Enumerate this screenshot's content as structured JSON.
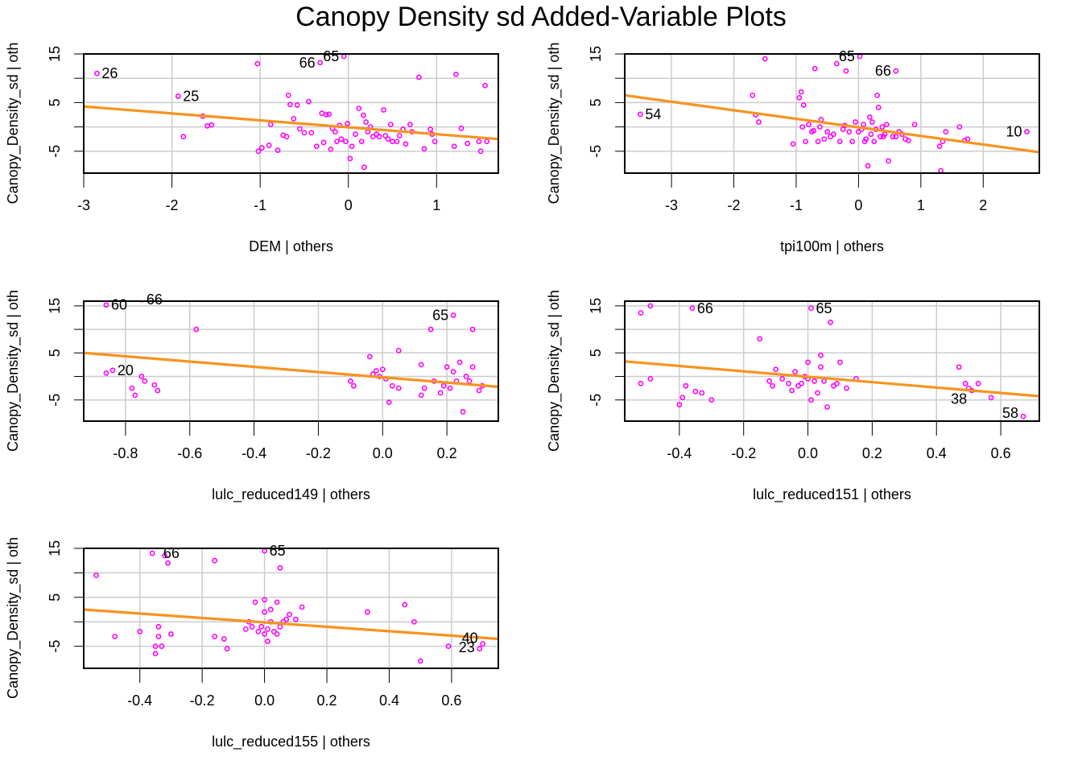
{
  "title": "Canopy Density sd Added-Variable Plots",
  "colors": {
    "points": "#ff00ff",
    "fit_line": "#f7931e",
    "grid": "#cccccc",
    "frame": "#000000"
  },
  "chart_data": [
    {
      "type": "scatter",
      "xlabel": "DEM | others",
      "ylabel": "Canopy_Density_sd  | oth",
      "xlim": [
        -3,
        1.7
      ],
      "ylim": [
        -9.5,
        15
      ],
      "xticks": [
        -3,
        -2,
        -1,
        0,
        1
      ],
      "yticks": [
        -5,
        5,
        15
      ],
      "grid": true,
      "fit": [
        [
          -3,
          4.2
        ],
        [
          1.7,
          -2.5
        ]
      ],
      "points": [
        [
          -2.85,
          11
        ],
        [
          -1.93,
          6.3
        ],
        [
          -1.87,
          -2
        ],
        [
          -1.65,
          2.2
        ],
        [
          -1.6,
          0.2
        ],
        [
          -1.55,
          0.4
        ],
        [
          -1.03,
          13
        ],
        [
          -1.02,
          -5
        ],
        [
          -0.98,
          -4.3
        ],
        [
          -0.9,
          -3.8
        ],
        [
          -0.88,
          0.5
        ],
        [
          -0.8,
          -4.8
        ],
        [
          -0.74,
          -1.7
        ],
        [
          -0.7,
          -2
        ],
        [
          -0.68,
          6.5
        ],
        [
          -0.66,
          4.6
        ],
        [
          -0.62,
          1.7
        ],
        [
          -0.58,
          4.5
        ],
        [
          -0.55,
          -0.4
        ],
        [
          -0.5,
          -1.2
        ],
        [
          -0.45,
          5.2
        ],
        [
          -0.42,
          -1.2
        ],
        [
          -0.36,
          -4
        ],
        [
          -0.32,
          13.2
        ],
        [
          -0.3,
          2.8
        ],
        [
          -0.28,
          -3.2
        ],
        [
          -0.25,
          2.5
        ],
        [
          -0.22,
          2.6
        ],
        [
          -0.2,
          -4.6
        ],
        [
          -0.18,
          -0.3
        ],
        [
          -0.15,
          -1
        ],
        [
          -0.13,
          -3
        ],
        [
          -0.1,
          0.3
        ],
        [
          -0.08,
          -2.5
        ],
        [
          -0.05,
          14.5
        ],
        [
          -0.03,
          -3
        ],
        [
          -0.01,
          0.7
        ],
        [
          0.02,
          -6.5
        ],
        [
          0.04,
          -4
        ],
        [
          0.08,
          -1.5
        ],
        [
          0.12,
          3.8
        ],
        [
          0.15,
          -3
        ],
        [
          0.17,
          2.4
        ],
        [
          0.18,
          -8.3
        ],
        [
          0.2,
          1
        ],
        [
          0.22,
          -1
        ],
        [
          0.25,
          0
        ],
        [
          0.28,
          -2
        ],
        [
          0.32,
          -1.5
        ],
        [
          0.35,
          -2
        ],
        [
          0.4,
          3.5
        ],
        [
          0.42,
          -1.8
        ],
        [
          0.45,
          -2.5
        ],
        [
          0.48,
          0.5
        ],
        [
          0.5,
          -3
        ],
        [
          0.55,
          -3
        ],
        [
          0.58,
          -1.8
        ],
        [
          0.62,
          -0.5
        ],
        [
          0.65,
          -3.5
        ],
        [
          0.7,
          0.5
        ],
        [
          0.72,
          -1
        ],
        [
          0.8,
          10.2
        ],
        [
          0.86,
          -4.5
        ],
        [
          0.93,
          -0.5
        ],
        [
          0.95,
          -1.5
        ],
        [
          0.98,
          -3
        ],
        [
          1.2,
          -4
        ],
        [
          1.22,
          10.8
        ],
        [
          1.28,
          -0.3
        ],
        [
          1.35,
          -3.4
        ],
        [
          1.48,
          -3
        ],
        [
          1.5,
          -5
        ],
        [
          1.55,
          8.5
        ],
        [
          1.57,
          -3
        ]
      ],
      "labels": [
        {
          "id": "26",
          "x": -2.85,
          "y": 11,
          "side": "right"
        },
        {
          "id": "25",
          "x": -1.93,
          "y": 6.3,
          "side": "right"
        },
        {
          "id": "66",
          "x": -0.32,
          "y": 13.2,
          "side": "left"
        },
        {
          "id": "65",
          "x": -0.05,
          "y": 14.5,
          "side": "left"
        }
      ]
    },
    {
      "type": "scatter",
      "xlabel": "tpi100m | others",
      "ylabel": "Canopy_Density_sd  | oth",
      "xlim": [
        -3.75,
        2.9
      ],
      "ylim": [
        -9.5,
        15
      ],
      "xticks": [
        -3,
        -2,
        -1,
        0,
        1,
        2
      ],
      "yticks": [
        -5,
        5,
        15
      ],
      "grid": true,
      "fit": [
        [
          -3.75,
          6.5
        ],
        [
          2.9,
          -5.2
        ]
      ],
      "points": [
        [
          -3.5,
          2.6
        ],
        [
          -1.7,
          6.5
        ],
        [
          -1.65,
          2.5
        ],
        [
          -1.6,
          1
        ],
        [
          -1.5,
          14
        ],
        [
          -1.05,
          -3.5
        ],
        [
          -0.95,
          6
        ],
        [
          -0.92,
          7.2
        ],
        [
          -0.9,
          0
        ],
        [
          -0.88,
          4.5
        ],
        [
          -0.85,
          -3
        ],
        [
          -0.8,
          0.5
        ],
        [
          -0.75,
          -1
        ],
        [
          -0.72,
          -0.8
        ],
        [
          -0.7,
          12
        ],
        [
          -0.65,
          -3
        ],
        [
          -0.62,
          0
        ],
        [
          -0.6,
          1.5
        ],
        [
          -0.55,
          -2.5
        ],
        [
          -0.5,
          -1
        ],
        [
          -0.45,
          -2
        ],
        [
          -0.4,
          -1.5
        ],
        [
          -0.35,
          13
        ],
        [
          -0.3,
          -3
        ],
        [
          -0.25,
          -0.5
        ],
        [
          -0.22,
          0.3
        ],
        [
          -0.2,
          11.5
        ],
        [
          -0.15,
          -1
        ],
        [
          -0.1,
          -3
        ],
        [
          -0.05,
          1
        ],
        [
          0,
          -1
        ],
        [
          0.02,
          14.5
        ],
        [
          0.05,
          -0.5
        ],
        [
          0.08,
          0.5
        ],
        [
          0.1,
          -3
        ],
        [
          0.12,
          -2.5
        ],
        [
          0.15,
          -8
        ],
        [
          0.18,
          2
        ],
        [
          0.2,
          -1.5
        ],
        [
          0.22,
          1
        ],
        [
          0.25,
          -3
        ],
        [
          0.28,
          -0.5
        ],
        [
          0.3,
          6.5
        ],
        [
          0.32,
          4
        ],
        [
          0.35,
          -2
        ],
        [
          0.38,
          0
        ],
        [
          0.4,
          -2
        ],
        [
          0.42,
          -1.5
        ],
        [
          0.45,
          0.5
        ],
        [
          0.48,
          -7
        ],
        [
          0.55,
          -2
        ],
        [
          0.6,
          -2
        ],
        [
          0.65,
          -1
        ],
        [
          0.7,
          -1.5
        ],
        [
          0.75,
          -2.5
        ],
        [
          0.8,
          -2.8
        ],
        [
          0.9,
          0.5
        ],
        [
          0.6,
          11.5
        ],
        [
          1.3,
          -4
        ],
        [
          1.32,
          -9
        ],
        [
          1.35,
          -3
        ],
        [
          1.4,
          -1
        ],
        [
          1.62,
          0
        ],
        [
          1.7,
          -2.8
        ],
        [
          1.75,
          -2.5
        ],
        [
          2.7,
          -1
        ]
      ],
      "labels": [
        {
          "id": "54",
          "x": -3.5,
          "y": 2.6,
          "side": "right"
        },
        {
          "id": "65",
          "x": 0.02,
          "y": 14.5,
          "side": "left"
        },
        {
          "id": "66",
          "x": 0.6,
          "y": 11.5,
          "side": "left"
        },
        {
          "id": "10",
          "x": 2.7,
          "y": -1,
          "side": "left"
        }
      ]
    },
    {
      "type": "scatter",
      "xlabel": "lulc_reduced149 | others",
      "ylabel": "Canopy_Density_sd  | oth",
      "xlim": [
        -0.93,
        0.36
      ],
      "ylim": [
        -9.5,
        16
      ],
      "xticks": [
        -0.8,
        -0.6,
        -0.4,
        -0.2,
        0.0,
        0.2
      ],
      "yticks": [
        -5,
        5,
        15
      ],
      "grid": true,
      "fit": [
        [
          -0.93,
          5
        ],
        [
          0.36,
          -2.2
        ]
      ],
      "points": [
        [
          -0.86,
          15.2
        ],
        [
          -0.84,
          16.5
        ],
        [
          -0.86,
          0.7
        ],
        [
          -0.84,
          1.3
        ],
        [
          -0.75,
          16.3
        ],
        [
          -0.78,
          -2.5
        ],
        [
          -0.77,
          -4
        ],
        [
          -0.75,
          0
        ],
        [
          -0.74,
          -1
        ],
        [
          -0.71,
          -1.8
        ],
        [
          -0.7,
          -3
        ],
        [
          -0.58,
          10
        ],
        [
          -0.1,
          -1
        ],
        [
          -0.09,
          -2
        ],
        [
          -0.04,
          4.2
        ],
        [
          -0.03,
          0.5
        ],
        [
          -0.02,
          1.2
        ],
        [
          -0.01,
          0
        ],
        [
          0,
          1.5
        ],
        [
          0.01,
          -0.5
        ],
        [
          0.02,
          -5.5
        ],
        [
          0.03,
          -2
        ],
        [
          0.05,
          5.5
        ],
        [
          0.05,
          -2.5
        ],
        [
          0.12,
          -4
        ],
        [
          0.12,
          2.5
        ],
        [
          0.13,
          -2.5
        ],
        [
          0.15,
          10
        ],
        [
          0.16,
          -1
        ],
        [
          0.18,
          -3.5
        ],
        [
          0.19,
          -2
        ],
        [
          0.2,
          2
        ],
        [
          0.21,
          -2.5
        ],
        [
          0.22,
          13
        ],
        [
          0.22,
          1
        ],
        [
          0.23,
          -1
        ],
        [
          0.24,
          3
        ],
        [
          0.25,
          -7.5
        ],
        [
          0.26,
          0
        ],
        [
          0.27,
          -1
        ],
        [
          0.28,
          10
        ],
        [
          0.28,
          2
        ],
        [
          0.3,
          -3
        ],
        [
          0.31,
          -2
        ]
      ],
      "labels": [
        {
          "id": "60",
          "x": -0.86,
          "y": 15.2,
          "side": "right"
        },
        {
          "id": "66",
          "x": -0.75,
          "y": 16.3,
          "side": "right"
        },
        {
          "id": "20",
          "x": -0.84,
          "y": 1.3,
          "side": "right"
        },
        {
          "id": "65",
          "x": 0.22,
          "y": 13,
          "side": "left"
        }
      ]
    },
    {
      "type": "scatter",
      "xlabel": "lulc_reduced151 | others",
      "ylabel": "Canopy_Density_sd  | oth",
      "xlim": [
        -0.57,
        0.72
      ],
      "ylim": [
        -9.5,
        16
      ],
      "xticks": [
        -0.4,
        -0.2,
        0.0,
        0.2,
        0.4,
        0.6
      ],
      "yticks": [
        -5,
        5,
        15
      ],
      "grid": true,
      "fit": [
        [
          -0.57,
          3.2
        ],
        [
          0.72,
          -4.2
        ]
      ],
      "points": [
        [
          -0.52,
          13.5
        ],
        [
          -0.52,
          -1.5
        ],
        [
          -0.49,
          15
        ],
        [
          -0.49,
          -0.5
        ],
        [
          -0.4,
          -6
        ],
        [
          -0.39,
          -4.5
        ],
        [
          -0.38,
          -2
        ],
        [
          -0.36,
          14.5
        ],
        [
          -0.35,
          -3.2
        ],
        [
          -0.33,
          -3.5
        ],
        [
          -0.3,
          -5
        ],
        [
          -0.15,
          8
        ],
        [
          -0.12,
          -1
        ],
        [
          -0.11,
          -2
        ],
        [
          -0.1,
          1.5
        ],
        [
          -0.08,
          -0.5
        ],
        [
          -0.06,
          -1.5
        ],
        [
          -0.05,
          -3
        ],
        [
          -0.04,
          1
        ],
        [
          -0.03,
          -2
        ],
        [
          -0.02,
          -1.5
        ],
        [
          -0.01,
          0
        ],
        [
          0,
          3
        ],
        [
          0,
          -0.5
        ],
        [
          0.01,
          -5
        ],
        [
          0.01,
          14.5
        ],
        [
          0.02,
          -1
        ],
        [
          0.03,
          -3.5
        ],
        [
          0.04,
          4.5
        ],
        [
          0.04,
          2
        ],
        [
          0.05,
          -1
        ],
        [
          0.06,
          -6.5
        ],
        [
          0.07,
          11.5
        ],
        [
          0.08,
          -2
        ],
        [
          0.09,
          -1.5
        ],
        [
          0.1,
          3
        ],
        [
          0.12,
          -2.5
        ],
        [
          0.15,
          -0.5
        ],
        [
          0.47,
          2
        ],
        [
          0.49,
          -1.5
        ],
        [
          0.5,
          -2.5
        ],
        [
          0.51,
          -3
        ],
        [
          0.53,
          -1.5
        ],
        [
          0.57,
          -4.5
        ],
        [
          0.67,
          -8.5
        ]
      ],
      "labels": [
        {
          "id": "66",
          "x": -0.36,
          "y": 14.5,
          "side": "right"
        },
        {
          "id": "65",
          "x": 0.01,
          "y": 14.5,
          "side": "right"
        },
        {
          "id": "38",
          "x": 0.51,
          "y": -4.8,
          "side": "left"
        },
        {
          "id": "58",
          "x": 0.67,
          "y": -7.8,
          "side": "left"
        }
      ]
    },
    {
      "type": "scatter",
      "xlabel": "lulc_reduced155 | others",
      "ylabel": "Canopy_Density_sd  | oth",
      "xlim": [
        -0.58,
        0.75
      ],
      "ylim": [
        -9.5,
        15
      ],
      "xticks": [
        -0.4,
        -0.2,
        0.0,
        0.2,
        0.4,
        0.6
      ],
      "yticks": [
        -5,
        5,
        15
      ],
      "grid": true,
      "fit": [
        [
          -0.58,
          2.5
        ],
        [
          0.75,
          -3.5
        ]
      ],
      "points": [
        [
          -0.54,
          9.5
        ],
        [
          -0.48,
          -3
        ],
        [
          -0.4,
          -2
        ],
        [
          -0.36,
          14
        ],
        [
          -0.35,
          -5
        ],
        [
          -0.35,
          -6.5
        ],
        [
          -0.34,
          -3
        ],
        [
          -0.34,
          -1
        ],
        [
          -0.33,
          -5
        ],
        [
          -0.32,
          13.5
        ],
        [
          -0.31,
          12
        ],
        [
          -0.3,
          -2.5
        ],
        [
          -0.16,
          12.5
        ],
        [
          -0.16,
          -3
        ],
        [
          -0.13,
          -3.5
        ],
        [
          -0.12,
          -5.5
        ],
        [
          -0.06,
          -1.5
        ],
        [
          -0.05,
          0
        ],
        [
          -0.04,
          -1
        ],
        [
          -0.03,
          4
        ],
        [
          -0.02,
          -2
        ],
        [
          -0.01,
          -1
        ],
        [
          0,
          4.5
        ],
        [
          0,
          2
        ],
        [
          0,
          -2.5
        ],
        [
          0,
          14.5
        ],
        [
          0.01,
          -4
        ],
        [
          0.01,
          -1.5
        ],
        [
          0.02,
          0
        ],
        [
          0.02,
          2.5
        ],
        [
          0.03,
          -2
        ],
        [
          0.04,
          4
        ],
        [
          0.04,
          -2.5
        ],
        [
          0.05,
          11
        ],
        [
          0.05,
          -1
        ],
        [
          0.06,
          0
        ],
        [
          0.07,
          0.5
        ],
        [
          0.08,
          1.5
        ],
        [
          0.1,
          0.5
        ],
        [
          0.12,
          3
        ],
        [
          0.33,
          2
        ],
        [
          0.45,
          3.5
        ],
        [
          0.48,
          0
        ],
        [
          0.5,
          -8
        ],
        [
          0.59,
          -5
        ],
        [
          0.69,
          -5.5
        ],
        [
          0.7,
          -4.5
        ]
      ],
      "labels": [
        {
          "id": "66",
          "x": -0.34,
          "y": 14,
          "side": "right"
        },
        {
          "id": "65",
          "x": 0.0,
          "y": 14.5,
          "side": "right"
        },
        {
          "id": "40",
          "x": 0.7,
          "y": -3.3,
          "side": "left"
        },
        {
          "id": "23",
          "x": 0.69,
          "y": -5.2,
          "side": "left"
        }
      ]
    }
  ]
}
